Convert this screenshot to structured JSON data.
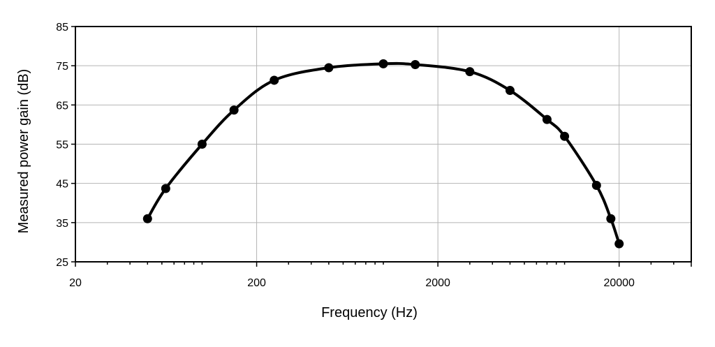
{
  "chart_data": {
    "type": "line",
    "xlabel": "Frequency  (Hz)",
    "ylabel": "Measured power gain  (dB)",
    "x_scale": "log",
    "xlim": [
      20,
      50000
    ],
    "ylim": [
      25,
      85
    ],
    "x_ticks": [
      20,
      200,
      2000,
      20000
    ],
    "x_tick_labels": [
      "20",
      "200",
      "2000",
      "20000"
    ],
    "y_ticks": [
      25,
      35,
      45,
      55,
      65,
      75,
      85
    ],
    "y_tick_labels": [
      "25",
      "35",
      "45",
      "55",
      "65",
      "75",
      "85"
    ],
    "grid": true,
    "series": [
      {
        "marker": "circle",
        "line": "smooth",
        "color": "#000000",
        "x": [
          50,
          63,
          100,
          150,
          250,
          500,
          1000,
          1500,
          3000,
          5000,
          8000,
          10000,
          15000,
          18000,
          20000
        ],
        "y": [
          36,
          43.7,
          55,
          63.7,
          71.3,
          74.5,
          75.5,
          75.3,
          73.5,
          68.7,
          61.3,
          57,
          44.5,
          36,
          29.6
        ]
      }
    ]
  }
}
